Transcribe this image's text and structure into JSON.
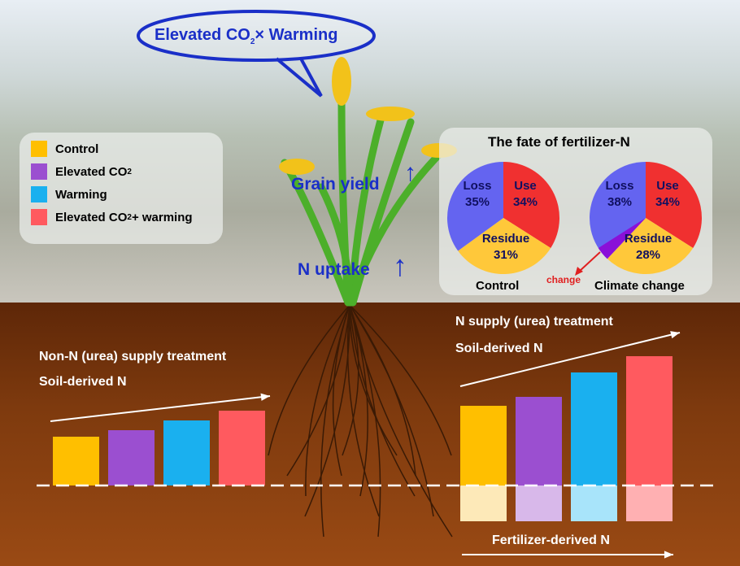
{
  "callout": {
    "text_pre": "Elevated CO",
    "text_sub": "2",
    "text_post": "× Warming"
  },
  "legend": [
    {
      "label": "Control",
      "sub": "",
      "post": "",
      "color": "#ffbf00"
    },
    {
      "label": "Elevated CO",
      "sub": "2",
      "post": "",
      "color": "#9b4fd0"
    },
    {
      "label": "Warming",
      "sub": "",
      "post": "",
      "color": "#1ab0ef"
    },
    {
      "label": "Elevated CO",
      "sub": "2",
      "post": " + warming",
      "color": "#ff5a5f"
    }
  ],
  "plant": {
    "grain_yield": "Grain yield",
    "n_uptake": "N uptake",
    "arrow": "↑"
  },
  "fate": {
    "title": "The fate of fertilizer-N",
    "pies": [
      {
        "name": "Control",
        "slices": [
          {
            "label": "Use",
            "pct": "34%",
            "value": 34,
            "color": "#f03030"
          },
          {
            "label": "Residue",
            "pct": "31%",
            "value": 31,
            "color": "#ffc83a"
          },
          {
            "label": "Loss",
            "pct": "35%",
            "value": 35,
            "color": "#6464f0"
          }
        ]
      },
      {
        "name": "Climate change",
        "slices": [
          {
            "label": "Use",
            "pct": "34%",
            "value": 34,
            "color": "#f03030"
          },
          {
            "label": "Residue",
            "pct": "28%",
            "value": 28,
            "color": "#ffc83a"
          },
          {
            "label": "Loss",
            "pct": "38%",
            "value": 38,
            "color": "#6464f0"
          }
        ],
        "change_color": "#8a10d8"
      }
    ],
    "change_label": "change"
  },
  "soil": {
    "non_n_title": "Non-N (urea) supply treatment",
    "non_n_sub": "Soil-derived N",
    "n_title": "N supply (urea) treatment",
    "n_sub": "Soil-derived N",
    "fert_label": "Fertilizer-derived N"
  },
  "chart_data": {
    "type": "bar",
    "categories": [
      "Control",
      "Elevated CO2",
      "Warming",
      "Elevated CO2 + warming"
    ],
    "colors": [
      "#ffbf00",
      "#9b4fd0",
      "#1ab0ef",
      "#ff5a5f"
    ],
    "light_colors": [
      "#fde9b8",
      "#d8b8ea",
      "#a8e4fa",
      "#ffb0b2"
    ],
    "non_n_soil": [
      60,
      68,
      80,
      92
    ],
    "n_soil": [
      98,
      109,
      139,
      159
    ],
    "n_fertilizer": [
      44,
      44,
      44,
      44
    ],
    "ylabel": "relative N (no axis)"
  }
}
